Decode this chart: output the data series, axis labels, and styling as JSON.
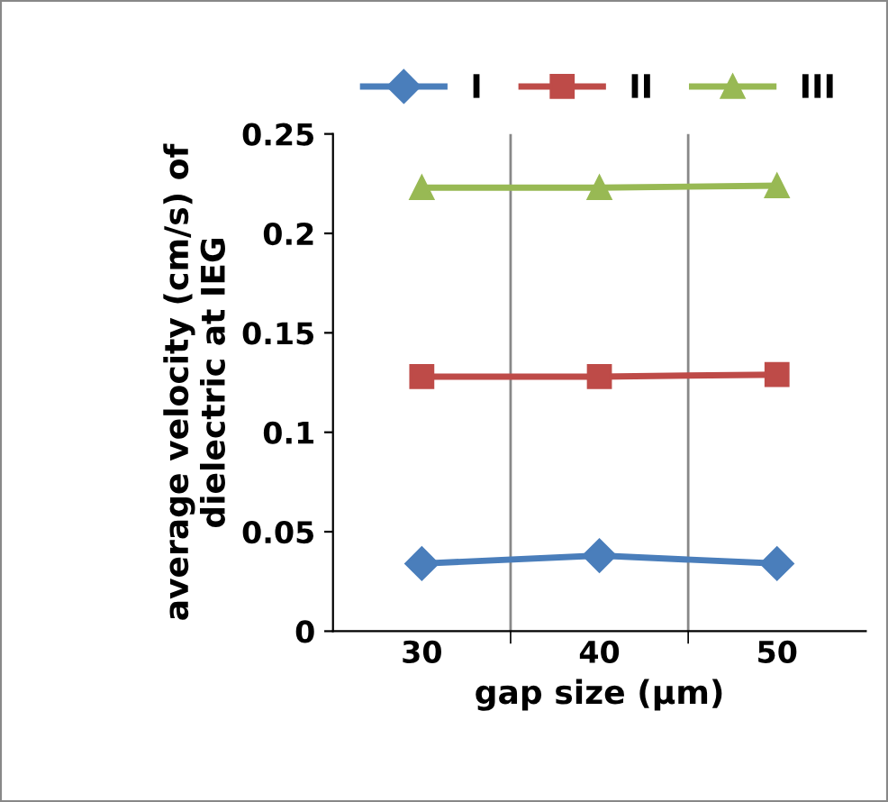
{
  "chart_data": {
    "type": "line",
    "xlabel": "gap size (µm)",
    "ylabel": "average velocity (cm/s) of\ndielectric at IEG",
    "categories": [
      "30",
      "40",
      "50"
    ],
    "series": [
      {
        "name": "I",
        "color": "#4a7ebb",
        "marker": "diamond",
        "values": [
          0.034,
          0.038,
          0.034
        ]
      },
      {
        "name": "II",
        "color": "#be4b48",
        "marker": "square",
        "values": [
          0.128,
          0.128,
          0.129
        ]
      },
      {
        "name": "III",
        "color": "#98b954",
        "marker": "triangle",
        "values": [
          0.223,
          0.223,
          0.224
        ]
      }
    ],
    "ylim": [
      0,
      0.25
    ],
    "yticks": [
      {
        "value": 0,
        "label": "0"
      },
      0.05,
      0.1,
      0.15,
      0.2,
      0.25
    ],
    "grid": "x",
    "legend": "top",
    "line_style": "solid"
  }
}
